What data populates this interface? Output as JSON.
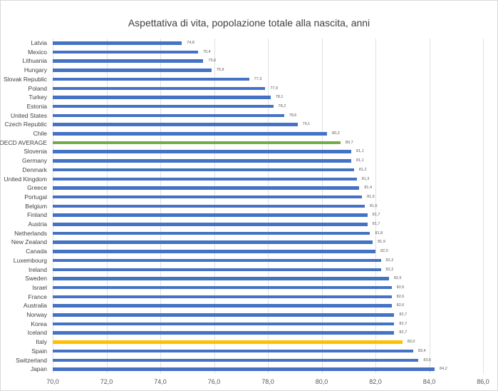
{
  "chart_data": {
    "type": "bar",
    "orientation": "horizontal",
    "title": "Aspettativa di vita, popolazione totale alla nascita, anni",
    "xlabel": "",
    "ylabel": "",
    "xlim": [
      70.0,
      86.0
    ],
    "x_ticks": [
      "70,0",
      "72,0",
      "74,0",
      "76,0",
      "78,0",
      "80,0",
      "82,0",
      "84,0",
      "86,0"
    ],
    "grid": true,
    "legend": null,
    "categories": [
      "Latvia",
      "Mexico",
      "Lithuania",
      "Hungary",
      "Slovak Republic",
      "Poland",
      "Turkey",
      "Estonia",
      "United States",
      "Czech Republic",
      "Chile",
      "OECD AVERAGE",
      "Slovenia",
      "Germany",
      "Denmark",
      "United Kingdom",
      "Greece",
      "Portugal",
      "Belgium",
      "Finland",
      "Austria",
      "Netherlands",
      "New Zealand",
      "Canada",
      "Luxembourg",
      "Ireland",
      "Sweden",
      "Israel",
      "France",
      "Australia",
      "Norway",
      "Korea",
      "Iceland",
      "Italy",
      "Spain",
      "Switzerland",
      "Japan"
    ],
    "values": [
      74.8,
      75.4,
      75.6,
      75.9,
      77.3,
      77.9,
      78.1,
      78.2,
      78.6,
      79.1,
      80.2,
      80.7,
      81.1,
      81.1,
      81.2,
      81.3,
      81.4,
      81.5,
      81.6,
      81.7,
      81.7,
      81.8,
      81.9,
      82.0,
      82.2,
      82.2,
      82.5,
      82.6,
      82.6,
      82.6,
      82.7,
      82.7,
      82.7,
      83.0,
      83.4,
      83.6,
      84.2
    ],
    "value_labels": [
      "74,8",
      "75,4",
      "75,6",
      "75,9",
      "77,3",
      "77,9",
      "78,1",
      "78,2",
      "78,6",
      "79,1",
      "80,2",
      "80,7",
      "81,1",
      "81,1",
      "81,2",
      "81,3",
      "81,4",
      "81,5",
      "81,6",
      "81,7",
      "81,7",
      "81,8",
      "81,9",
      "82,0",
      "82,2",
      "82,2",
      "82,5",
      "82,6",
      "82,6",
      "82,6",
      "82,7",
      "82,7",
      "82,7",
      "83,0",
      "83,4",
      "83,6",
      "84,2"
    ],
    "highlights": {
      "OECD AVERAGE": "#70ad47",
      "Italy": "#ffc000"
    },
    "colors": {
      "default_bar": "#4472c4",
      "oecd_bar": "#70ad47",
      "italy_bar": "#ffc000",
      "gridline": "#e0e0e0"
    }
  }
}
